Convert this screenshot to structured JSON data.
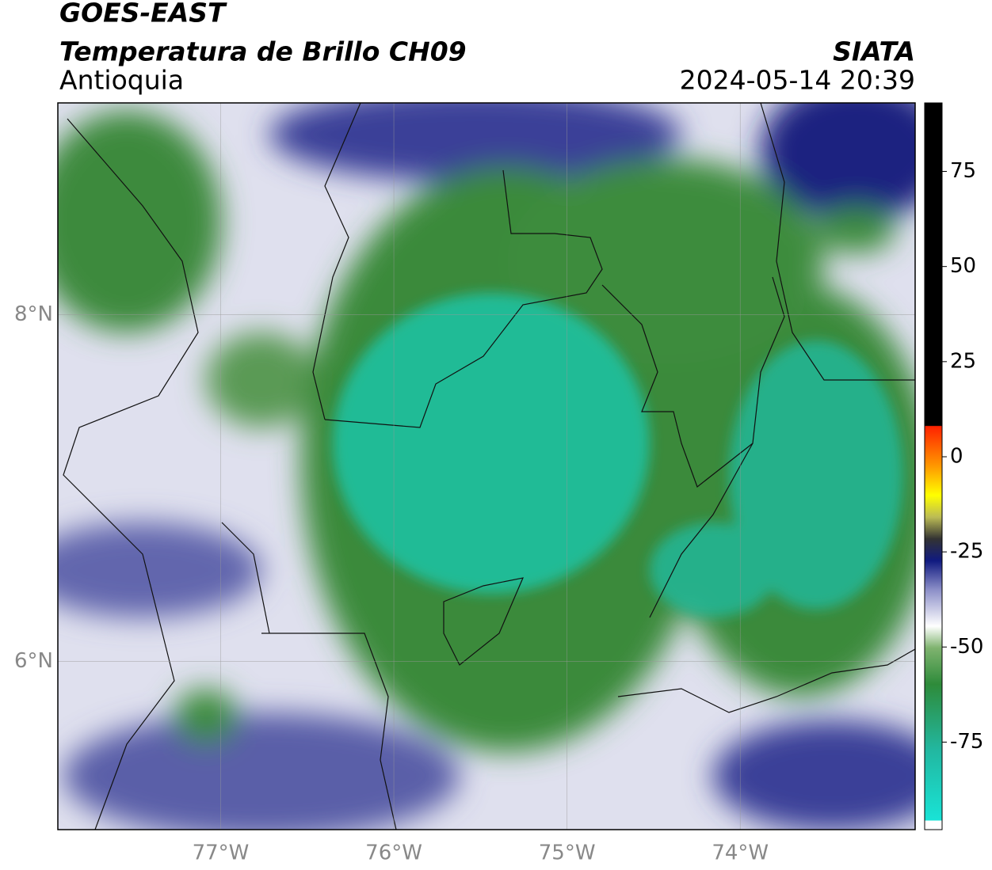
{
  "header": {
    "title": "GOES-EAST",
    "subtitle": "Temperatura de Brillo CH09",
    "region": "Antioquia",
    "source": "SIATA",
    "datetime": "2024-05-14 20:39"
  },
  "map": {
    "xlim": [
      -77.94,
      -72.99
    ],
    "ylim": [
      5.03,
      9.22
    ],
    "xticks": [
      {
        "value": -77,
        "label": "77°W"
      },
      {
        "value": -76,
        "label": "76°W"
      },
      {
        "value": -75,
        "label": "75°W"
      },
      {
        "value": -74,
        "label": "74°W"
      }
    ],
    "yticks": [
      {
        "value": 8,
        "label": "8°N"
      },
      {
        "value": 6,
        "label": "6°N"
      }
    ],
    "grid": true
  },
  "colorbar": {
    "lim": [
      -98,
      93
    ],
    "ticks": [
      75,
      50,
      25,
      0,
      -25,
      -50,
      -75
    ]
  }
}
